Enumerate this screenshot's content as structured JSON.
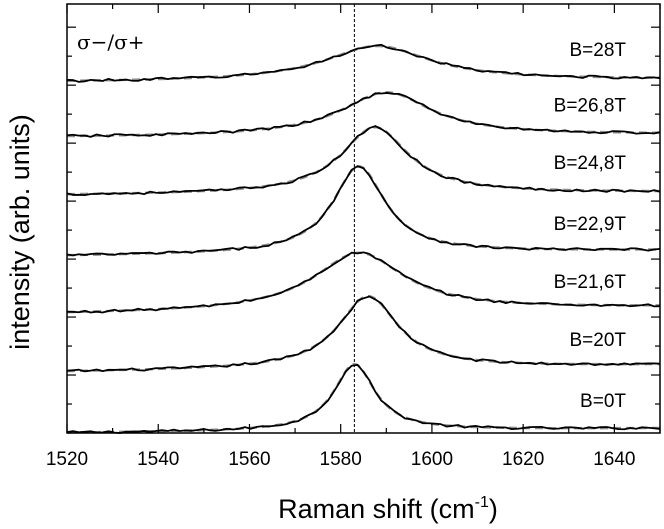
{
  "chart_data": {
    "type": "line",
    "annotation": "σ−/σ+",
    "xlabel": "Raman shift (cm",
    "xlabel_sup": "-1",
    "xlabel_close": ")",
    "ylabel": "intensity (arb. units)",
    "xlim": [
      1520,
      1650
    ],
    "ylim": [
      0,
      7.4
    ],
    "xticks": [
      1520,
      1540,
      1560,
      1580,
      1600,
      1620,
      1640
    ],
    "yticks_unlabeled": true,
    "reference_line_x": 1583,
    "style": {
      "measured_color": "#000000",
      "fit_color": "#8c8c8c",
      "fit_dash": "dashed",
      "reference_line_dash": "dotted"
    },
    "series": [
      {
        "name": "B=0T",
        "offset": 0.0,
        "baseline": [
          0.0,
          0.08
        ],
        "peak": 1583.0,
        "amp": 1.15,
        "hwhm": 5.5
      },
      {
        "name": "B=20T",
        "offset": 1.05,
        "baseline": [
          0.0,
          0.12
        ],
        "peak": 1586.0,
        "amp": 1.25,
        "hwhm": 8.0
      },
      {
        "name": "B=21,6T",
        "offset": 2.05,
        "baseline": [
          0.0,
          0.12
        ],
        "peak": 1584.0,
        "amp": 1.0,
        "hwhm": 12.0
      },
      {
        "name": "B=22,9T",
        "offset": 3.05,
        "baseline": [
          0.0,
          0.1
        ],
        "peak": 1584.0,
        "amp": 1.5,
        "hwhm": 7.0
      },
      {
        "name": "B=24,8T",
        "offset": 4.1,
        "baseline": [
          0.0,
          0.05
        ],
        "peak": 1587.5,
        "amp": 1.15,
        "hwhm": 9.0
      },
      {
        "name": "B=26,8T",
        "offset": 5.1,
        "baseline": [
          0.0,
          0.05
        ],
        "peak": 1590.0,
        "amp": 0.75,
        "hwhm": 12.0
      },
      {
        "name": "B=28T",
        "offset": 6.05,
        "baseline": [
          0.0,
          0.05
        ],
        "peak": 1588.0,
        "amp": 0.6,
        "hwhm": 14.0
      }
    ]
  }
}
